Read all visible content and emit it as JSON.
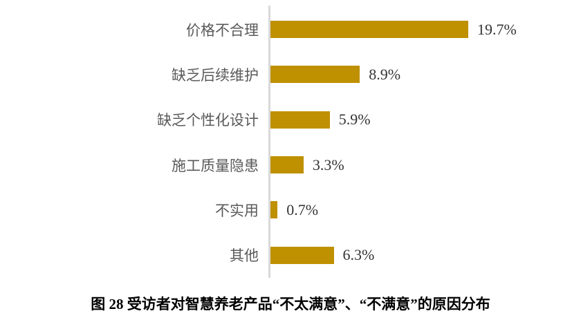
{
  "figure": {
    "caption": "图 28 受访者对智慧养老产品“不太满意”、“不满意”的原因分布"
  },
  "colors": {
    "bar": "#BF9000",
    "axis": "#D9D9D9",
    "category_label": "#595959",
    "value_label": "#333333",
    "caption": "#000000"
  },
  "chart_data": {
    "type": "bar",
    "orientation": "horizontal",
    "categories": [
      "价格不合理",
      "缺乏后续维护",
      "缺乏个性化设计",
      "施工质量隐患",
      "不实用",
      "其他"
    ],
    "values": [
      19.7,
      8.9,
      5.9,
      3.3,
      0.7,
      6.3
    ],
    "value_labels": [
      "19.7%",
      "8.9%",
      "5.9%",
      "3.3%",
      "0.7%",
      "6.3%"
    ],
    "title": "图 28 受访者对智慧养老产品“不太满意”、“不满意”的原因分布",
    "xlabel": "",
    "ylabel": "",
    "grid": false,
    "legend": "none",
    "data_labels": "outside-end"
  }
}
